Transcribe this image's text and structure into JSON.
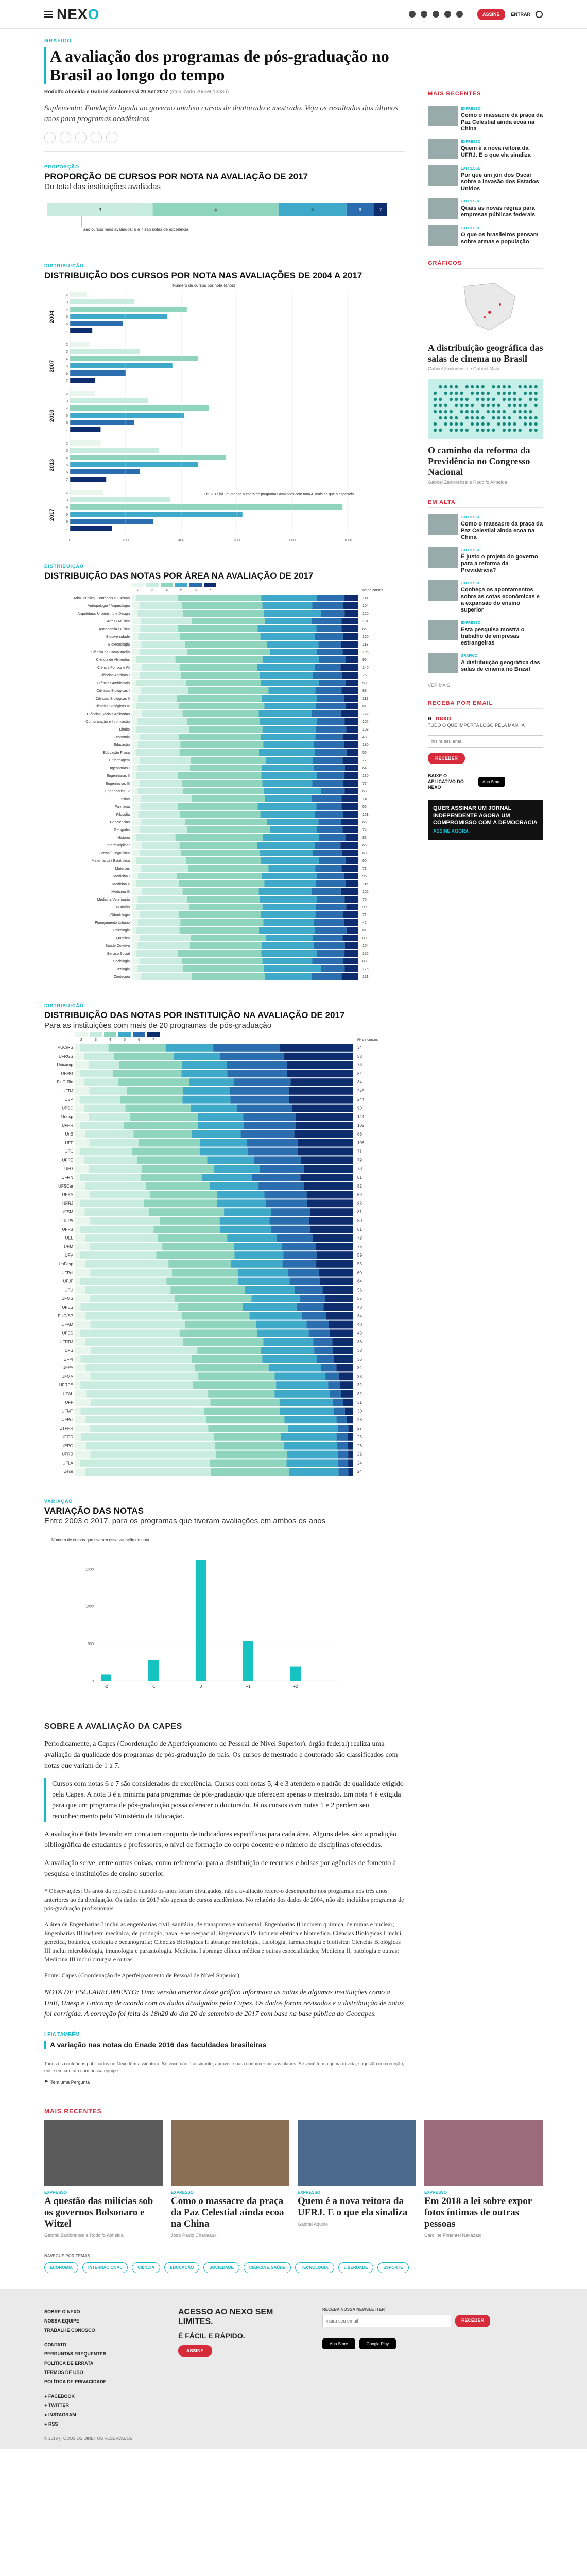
{
  "header": {
    "logo_pre": "NEX",
    "logo_o": "O",
    "subscribe_label": "ASSINE",
    "login_label": "ENTRAR"
  },
  "article": {
    "kicker": "GRÁFICO",
    "title": "A avaliação dos programas de pós-graduação no Brasil ao longo do tempo",
    "byline_authors": "Rodolfo Almeida e Gabriel Zanlorenssi",
    "byline_date": "20 Set 2017",
    "byline_updated": "(atualizado 20/Set 13h30)",
    "lead": "Suplemento: Fundação ligada ao governo analisa cursos de doutorado e mestrado. Veja os resultados dos últimos anos para programas acadêmicos"
  },
  "fig1": {
    "kicker": "PROPORÇÃO",
    "title": "PROPORÇÃO DE CURSOS POR NOTA NA AVALIAÇÃO DE 2017",
    "subtitle": "Do total das instituições avaliadas",
    "note": "são cursos mais avaliados; 6 e 7 são notas de excelência"
  },
  "fig2": {
    "kicker": "DISTRIBUIÇÃO",
    "title": "DISTRIBUIÇÃO DOS CURSOS POR NOTA NAS AVALIAÇÕES DE 2004 A 2017",
    "axis_label": "Número de cursos por nota (anos)",
    "years": [
      "2004",
      "2007",
      "2010",
      "2013",
      "2017"
    ],
    "note": "Em 2017 há um grande número de programas avaliados com nota 4, mais do que o esperado"
  },
  "fig3": {
    "kicker": "DISTRIBUIÇÃO",
    "title": "DISTRIBUIÇÃO DAS NOTAS POR ÁREA NA AVALIAÇÃO DE 2017",
    "col_label": "Nº de cursos",
    "areas": [
      "Adm. Pública, Contábeis e Turismo",
      "Antropologia / Arqueologia",
      "Arquitetura, Urbanismo e Design",
      "Artes / Música",
      "Astronomia / Física",
      "Biodiversidade",
      "Biotecnologia",
      "Ciência da Computação",
      "Ciência de Alimentos",
      "Ciência Política e RI",
      "Ciências Agrárias I",
      "Ciências Ambientais",
      "Ciências Biológicas I",
      "Ciências Biológicas II",
      "Ciências Biológicas III",
      "Ciências Sociais Aplicadas",
      "Comunicação e Informação",
      "Direito",
      "Economia",
      "Educação",
      "Educação Física",
      "Enfermagem",
      "Engenharias I",
      "Engenharias II",
      "Engenharias III",
      "Engenharias IV",
      "Ensino",
      "Farmácia",
      "Filosofia",
      "Geociências",
      "Geografia",
      "História",
      "Interdisciplinar",
      "Letras / Linguística",
      "Matemática / Estatística",
      "Materiais",
      "Medicina I",
      "Medicina II",
      "Medicina III",
      "Medicina Veterinária",
      "Nutrição",
      "Odontologia",
      "Planejamento Urbano",
      "Psicologia",
      "Química",
      "Saúde Coletiva",
      "Serviço Social",
      "Sociologia",
      "Teologia",
      "Zootecnia"
    ],
    "counts": [
      141,
      104,
      120,
      131,
      85,
      160,
      113,
      196,
      96,
      140,
      75,
      50,
      88,
      112,
      61,
      122,
      102,
      108,
      48,
      180,
      56,
      77,
      64,
      130,
      77,
      68,
      118,
      55,
      101,
      65,
      74,
      83,
      66,
      63,
      60,
      71,
      95,
      116,
      106,
      75,
      90,
      71,
      42,
      61,
      83,
      104,
      156,
      80,
      176,
      131
    ]
  },
  "fig4": {
    "kicker": "DISTRIBUIÇÃO",
    "title": "DISTRIBUIÇÃO DAS NOTAS POR INSTITUIÇÃO NA AVALIAÇÃO DE 2017",
    "subtitle": "Para as instituições com mais de 20 programas de pós-graduação",
    "col_label": "Nº de cursos",
    "institutions": [
      "PUC/RS",
      "UFRGS",
      "Unicamp",
      "UFMG",
      "PUC-Rio",
      "UFRJ",
      "USP",
      "UFSC",
      "Unesp",
      "UFPR",
      "UnB",
      "UFF",
      "UFC",
      "UFPE",
      "UFG",
      "UFRN",
      "UFSCar",
      "UFBA",
      "UERJ",
      "UFSM",
      "UFPA",
      "UFPB",
      "UEL",
      "UEM",
      "UFV",
      "UnFesp",
      "UFPel",
      "UFJF",
      "UFU",
      "UFMS",
      "UFES",
      "PUC/SP",
      "UFAM",
      "UFES",
      "UFRRJ",
      "UFS",
      "UFPI",
      "UFPA",
      "UFMA",
      "UFRPE",
      "UFAL",
      "UFF",
      "UFMT",
      "UFPel",
      "UTFPR",
      "UFGD",
      "UEPG",
      "UFRB",
      "UFLA",
      "Uece"
    ],
    "counts": [
      34,
      58,
      76,
      84,
      34,
      245,
      244,
      98,
      144,
      102,
      88,
      106,
      71,
      79,
      78,
      81,
      82,
      59,
      83,
      81,
      80,
      81,
      72,
      75,
      59,
      55,
      60,
      64,
      56,
      55,
      48,
      34,
      40,
      43,
      38,
      38,
      36,
      34,
      33,
      32,
      32,
      31,
      30,
      28,
      27,
      25,
      26,
      22,
      24,
      24
    ]
  },
  "fig5": {
    "kicker": "VARIAÇÃO",
    "title": "VARIAÇÃO DAS NOTAS",
    "subtitle": "Entre 2003 e 2017, para os programas que tiveram avaliações em ambos os anos",
    "ylabel": "Número de cursos que tiveram essa variação de nota"
  },
  "chart_data": [
    {
      "type": "bar",
      "title": "PROPORÇÃO DE CURSOS POR NOTA NA AVALIAÇÃO DE 2017",
      "categories": [
        "3",
        "4",
        "5",
        "6",
        "7"
      ],
      "values": [
        31,
        37,
        20,
        8,
        4
      ],
      "ylabel": "",
      "colors": [
        "#c9ece0",
        "#8fd4bd",
        "#3fa9c9",
        "#2a6eb0",
        "#0e2d6f"
      ]
    },
    {
      "type": "bar",
      "title": "VARIAÇÃO DAS NOTAS",
      "categories": [
        "-2",
        "-1",
        "0",
        "+1",
        "+2"
      ],
      "values": [
        80,
        270,
        1620,
        530,
        190
      ],
      "ylim": [
        0,
        1800
      ],
      "ylabel": "Número de cursos que tiveram essa variação de nota"
    }
  ],
  "section": {
    "h2": "SOBRE A AVALIAÇÃO DA CAPES",
    "p1": "Periodicamente, a Capes (Coordenação de Aperfeiçoamento de Pessoal de Nível Superior), órgão federal) realiza uma avaliação da qualidade dos programas de pós-graduação do país. Os cursos de mestrado e doutorado são classificados com notas que variam de 1 a 7.",
    "p2": "Cursos com notas 6 e 7 são considerados de excelência. Cursos com notas 5, 4 e 3 atendem o padrão de qualidade exigido pela Capes. A nota 3 é a mínima para programas de pós-graduação que oferecem apenas o mestrado. Em nota 4 é exigida para que um programa de pós-graduação possa oferecer o doutorado. Já os cursos com notas 1 e 2 perdem seu reconhecimento pelo Ministério da Educação.",
    "p3": "A avaliação é feita levando em conta um conjunto de indicadores específicos para cada área. Alguns deles são: a produção bibliográfica de estudantes e professores, o nível de formação do corpo docente e o número de disciplinas oferecidas.",
    "p4": "A avaliação serve, entre outras coisas, como referencial para a distribuição de recursos e bolsas por agências de fomento à pesquisa e instituições de ensino superior.",
    "obs": "* Observações: Os anos da reflexão à quando os anos foram divulgados, não a avaliação refere-o desempenho nos programas nos três anos anteriores ao da divulgação. Os dados de 2017 são apenas de cursos acadêmicos. No relatório dos dados de 2004, não são incluídos programas de pós-graduação profissionais.",
    "areas_note": "A área de Engenharias I inclui as engenharias civil, sanitária, de transportes e ambiental; Engenharias II incluem química, de minas e nuclear; Engenharias III incluem mecânica, de produção, naval e aeroespacial; Engenharias IV incluem elétrica e biomédica. Ciências Biológicas I inclui genética, botânica, ecologia e oceanografia; Ciências Biológicas II abrange morfologia, fisiologia, farmacologia e biofísica; Ciências Biológicas III inclui microbiologia, imunologia e parasitologia. Medicina I abrange clínica médica e outras especialidades; Medicina II, patologia e outras; Medicina III inclui cirurgia e outras.",
    "source": "Fonte: Capes (Coordenação de Aperfeiçoamento de Pessoal de Nível Superior)",
    "edit_note": "NOTA DE ESCLARECIMENTO: Uma versão anterior deste gráfico informava as notas de algumas instituições como a UnB, Unesp e Unicamp de acordo com os dados divulgados pela Capes. Os dados foram revisados e a distribuição de notas foi corrigida. A correção foi feita às 18h20 do dia 20 de setembro de 2017 com base na base pública do Geocapes.",
    "leia_label": "LEIA TAMBÉM",
    "leia_1": "A variação nas notas do Enade 2016 das faculdades brasileiras",
    "smallprint": "Todos os conteúdos publicados no Nexo têm assinatura. Se você não é assinante, aproveite para conhecer nossos planos. Se você tem alguma dúvida, sugestão ou correção, entre em contato com nossa equipe.",
    "report_label": "Tem uma Pergunta"
  },
  "aside": {
    "mais_lidas": "MAIS RECENTES",
    "items": [
      {
        "k": "EXPRESSO",
        "t": "Como o massacre da praça da Paz Celestial ainda ecoa na China"
      },
      {
        "k": "EXPRESSO",
        "t": "Quem é a nova reitora da UFRJ. E o que ela sinaliza"
      },
      {
        "k": "EXPRESSO",
        "t": "Por que um júri dos Oscar sobre a invasão dos Estados Unidos"
      },
      {
        "k": "EXPRESSO",
        "t": "Quais as novas regras para empresas públicas federais"
      },
      {
        "k": "EXPRESSO",
        "t": "O que os brasileiros pensam sobre armas e população"
      }
    ],
    "graficos_h": "GRÁFICOS",
    "cards": [
      {
        "t": "A distribuição geográfica das salas de cinema no Brasil",
        "a": "Gabriel Zanlorenssi e Gabriel Maia"
      },
      {
        "t": "O caminho da reforma da Previdência no Congresso Nacional",
        "a": "Gabriel Zanlorenssi e Rodolfo Almeida"
      }
    ],
    "em_alta_h": "EM ALTA",
    "em_alta": [
      {
        "k": "EXPRESSO",
        "t": "Como o massacre da praça da Paz Celestial ainda ecoa na China"
      },
      {
        "k": "EXPRESSO",
        "t": "É justo o projeto do governo para a reforma da Previdência?"
      },
      {
        "k": "EXPRESSO",
        "t": "Conheça os apontamentos sobre as cotas econômicas e a expansão do ensino superior"
      },
      {
        "k": "EXPRESSO",
        "t": "Esta pesquisa mostra o trabalho de empresas estrangeiras"
      },
      {
        "k": "GRÁFICO",
        "t": "A distribuição geográfica das salas de cinema no Brasil"
      }
    ],
    "ver_mais": "VER MAIS",
    "nl_h": "RECEBA POR EMAIL",
    "nl_title_pre": "a_",
    "nl_title": "nexo",
    "nl_sub": "TUDO O QUE IMPORTA LOGO PELA MANHÃ",
    "nl_placeholder": "insira seu email",
    "nl_btn": "RECEBER",
    "app_text": "BAIXE O APLICATIVO DO NEXO",
    "app_badge": "App Store",
    "promo": "QUER ASSINAR UM JORNAL INDEPENDENTE AGORA UM COMPROMISSO COM A DEMOCRACIA",
    "promo_sub": "ASSINE AGORA"
  },
  "bottom": {
    "mais_h": "MAIS RECENTES",
    "cards": [
      {
        "k": "EXPRESSO",
        "t": "A questão das milícias sob os governos Bolsonaro e Witzel",
        "a": "Gabriel Zanlorenssi e Rodolfo Almeida"
      },
      {
        "k": "EXPRESSO",
        "t": "Como o massacre da praça da Paz Celestial ainda ecoa na China",
        "a": "João Paulo Charleaux"
      },
      {
        "k": "EXPRESSO",
        "t": "Quem é a nova reitora da UFRJ. E o que ela sinaliza",
        "a": "Gabriel Aquino"
      },
      {
        "k": "EXPRESSO",
        "t": "Em 2018 a lei sobre expor fotos íntimas de outras pessoas",
        "a": "Caroline Pimentel Nakazato"
      }
    ],
    "tags_h": "NAVEGUE POR TEMAS",
    "tags": [
      "ECONOMIA",
      "INTERNACIONAL",
      "CIÊNCIA",
      "EDUCAÇÃO",
      "SOCIEDADE",
      "CIÊNCIA E SAÚDE",
      "TECNOLOGIA",
      "LIBERDADE",
      "ESPORTE"
    ]
  },
  "footer": {
    "col1": [
      "SOBRE O NEXO",
      "NOSSA EQUIPE",
      "TRABALHE CONOSCO",
      "",
      "CONTATO",
      "PERGUNTAS FREQUENTES",
      "POLÍTICA DE ERRATA",
      "TERMOS DE USO",
      "POLÍTICA DE PRIVACIDADE"
    ],
    "social": [
      "FACEBOOK",
      "TWITTER",
      "INSTAGRAM",
      "RSS"
    ],
    "mid_h": "ACESSO AO NEXO SEM LIMITES.",
    "mid_h2": "É FÁCIL E RÁPIDO.",
    "mid_btn": "ASSINE",
    "nl_label": "RECEBA NOSSA NEWSLETTER",
    "nl_placeholder": "insira seu email",
    "nl_btn": "RECEBER",
    "app1": "App Store",
    "app2": "Google Play",
    "copyright": "© 2019 | TODOS OS DIREITOS RESERVADOS"
  }
}
